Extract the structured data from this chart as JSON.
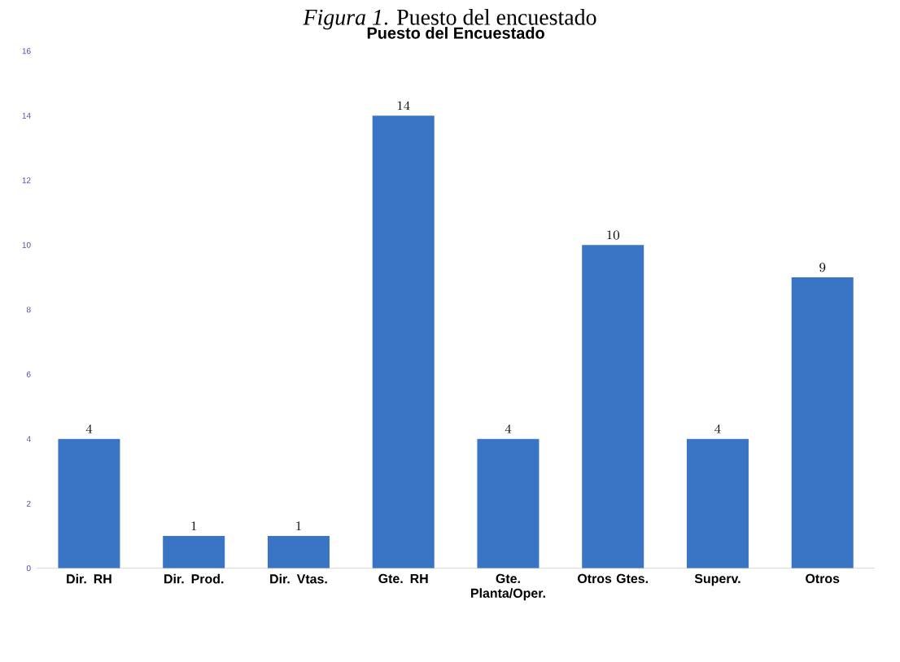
{
  "chart_data": {
    "type": "bar",
    "title": "Puesto del Encuestado",
    "annotations": [
      "*Figura 1*. Puesto del encuestado"
    ],
    "categories": [
      "Dir. RH",
      "Dir. Prod.",
      "Dir. Vtas.",
      "Gte. RH",
      "Gte. Planta/Oper.",
      "Otros Gtes.",
      "Superv.",
      "Otros"
    ],
    "values": [
      4,
      1,
      1,
      14,
      4,
      10,
      4,
      9
    ],
    "color": "#3a74c4",
    "ylim": [
      0,
      16
    ],
    "yticks": [
      0,
      2,
      4,
      6,
      8,
      10,
      12,
      14,
      16
    ],
    "data_labels": true
  }
}
